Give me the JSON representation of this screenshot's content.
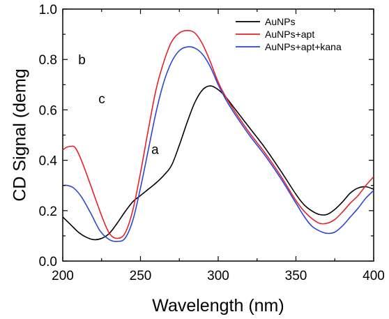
{
  "chart_data": {
    "type": "line",
    "xlabel": "Wavelength (nm)",
    "ylabel": "CD Signal (demg",
    "xlim": [
      200,
      400
    ],
    "ylim": [
      0.0,
      1.0
    ],
    "x_ticks": [
      "200",
      "250",
      "300",
      "350",
      "400"
    ],
    "y_ticks": [
      "0.0",
      "0.2",
      "0.4",
      "0.6",
      "0.8",
      "1.0"
    ],
    "grid": false,
    "legend_position": "top-right",
    "series": [
      {
        "name": "AuNPs",
        "color": "#000000",
        "x": [
          200,
          205,
          210,
          215,
          220,
          225,
          230,
          235,
          240,
          245,
          250,
          255,
          260,
          265,
          270,
          275,
          280,
          285,
          290,
          295,
          300,
          305,
          310,
          320,
          330,
          340,
          350,
          355,
          360,
          365,
          370,
          375,
          380,
          385,
          390,
          395,
          400
        ],
        "y": [
          0.175,
          0.145,
          0.115,
          0.095,
          0.085,
          0.09,
          0.11,
          0.15,
          0.195,
          0.235,
          0.26,
          0.285,
          0.31,
          0.34,
          0.38,
          0.46,
          0.55,
          0.63,
          0.68,
          0.695,
          0.68,
          0.65,
          0.61,
          0.53,
          0.45,
          0.36,
          0.265,
          0.225,
          0.2,
          0.185,
          0.185,
          0.205,
          0.235,
          0.27,
          0.29,
          0.295,
          0.285
        ]
      },
      {
        "name": "AuNPs+apt",
        "color": "#e8202a",
        "x": [
          200,
          202,
          205,
          208,
          212,
          218,
          225,
          230,
          235,
          240,
          245,
          250,
          255,
          260,
          265,
          270,
          275,
          280,
          285,
          290,
          295,
          300,
          305,
          310,
          320,
          330,
          340,
          350,
          355,
          360,
          365,
          370,
          375,
          380,
          385,
          390,
          395,
          400
        ],
        "y": [
          0.44,
          0.45,
          0.455,
          0.45,
          0.4,
          0.3,
          0.18,
          0.11,
          0.09,
          0.11,
          0.2,
          0.35,
          0.52,
          0.68,
          0.79,
          0.87,
          0.905,
          0.915,
          0.905,
          0.86,
          0.79,
          0.71,
          0.65,
          0.6,
          0.51,
          0.43,
          0.34,
          0.24,
          0.2,
          0.17,
          0.15,
          0.15,
          0.165,
          0.195,
          0.23,
          0.26,
          0.3,
          0.335
        ]
      },
      {
        "name": "AuNPs+apt+kana",
        "color": "#2a46d8",
        "x": [
          200,
          203,
          207,
          212,
          218,
          224,
          230,
          235,
          240,
          245,
          250,
          255,
          260,
          265,
          270,
          275,
          280,
          285,
          290,
          295,
          300,
          305,
          310,
          320,
          330,
          340,
          350,
          355,
          360,
          365,
          370,
          375,
          380,
          385,
          390,
          395,
          400
        ],
        "y": [
          0.3,
          0.3,
          0.29,
          0.255,
          0.19,
          0.12,
          0.085,
          0.078,
          0.09,
          0.16,
          0.29,
          0.44,
          0.59,
          0.71,
          0.79,
          0.835,
          0.85,
          0.845,
          0.82,
          0.77,
          0.7,
          0.64,
          0.59,
          0.5,
          0.42,
          0.33,
          0.23,
          0.18,
          0.14,
          0.12,
          0.11,
          0.115,
          0.14,
          0.175,
          0.21,
          0.25,
          0.28
        ]
      }
    ],
    "annotations": [
      {
        "text": "b",
        "x": 210,
        "y": 0.8
      },
      {
        "text": "c",
        "x": 223,
        "y": 0.645
      },
      {
        "text": "a",
        "x": 257,
        "y": 0.445
      }
    ]
  }
}
